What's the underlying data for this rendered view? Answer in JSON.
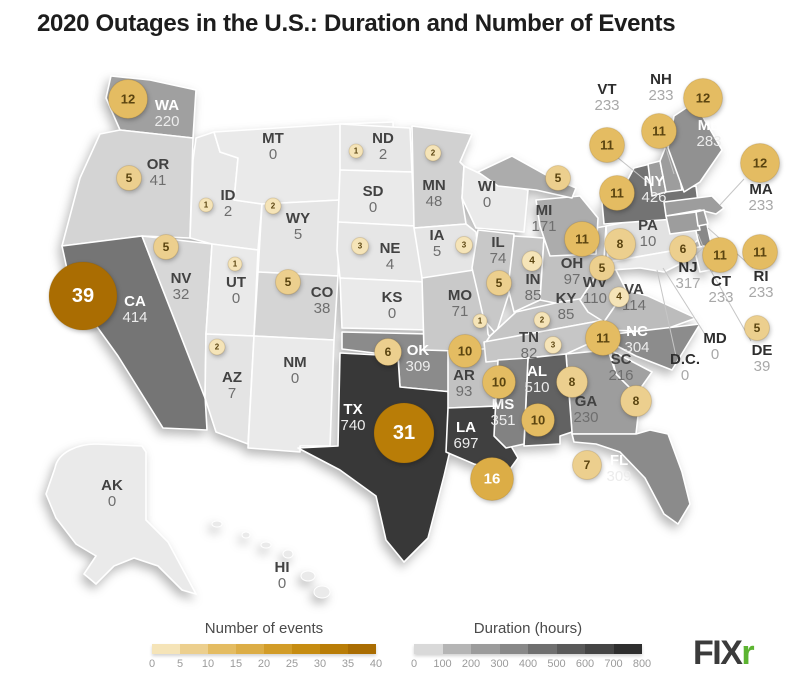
{
  "title": "2020 Outages in the U.S.: Duration and Number of Events",
  "legends": {
    "events": {
      "title": "Number of events",
      "ticks": [
        "0",
        "5",
        "10",
        "15",
        "20",
        "25",
        "30",
        "35",
        "40"
      ],
      "colors": [
        "#f5e4b8",
        "#eccf8e",
        "#e4bc62",
        "#dcad46",
        "#d29c28",
        "#c68c11",
        "#b97d07",
        "#aa6d02"
      ]
    },
    "duration": {
      "title": "Duration (hours)",
      "ticks": [
        "0",
        "100",
        "200",
        "300",
        "400",
        "500",
        "600",
        "700",
        "800"
      ],
      "colors": [
        "#d9d9d9",
        "#b5b5b5",
        "#9c9c9c",
        "#888888",
        "#6f6f6f",
        "#595959",
        "#454545",
        "#2e2e2e"
      ]
    }
  },
  "logo": {
    "text_dark": "FIX",
    "text_green": "r",
    "dark_color": "#3b3b3b",
    "green_color": "#5cb431"
  },
  "chart_data": {
    "type": "heatmap",
    "subtype": "us-choropleth-with-bubble-overlay",
    "title": "2020 Outages in the U.S.: Duration and Number of Events",
    "color_metric": {
      "label": "Duration (hours)",
      "range": [
        0,
        800
      ]
    },
    "size_metric": {
      "label": "Number of events",
      "range": [
        0,
        40
      ]
    },
    "states": [
      {
        "state": "WA",
        "duration_hours": 220,
        "events": 12
      },
      {
        "state": "OR",
        "duration_hours": 41,
        "events": 5
      },
      {
        "state": "CA",
        "duration_hours": 414,
        "events": 39
      },
      {
        "state": "NV",
        "duration_hours": 32,
        "events": 5
      },
      {
        "state": "ID",
        "duration_hours": 2,
        "events": 1
      },
      {
        "state": "MT",
        "duration_hours": 0,
        "events": null
      },
      {
        "state": "WY",
        "duration_hours": 5,
        "events": 2
      },
      {
        "state": "UT",
        "duration_hours": 0,
        "events": 1
      },
      {
        "state": "CO",
        "duration_hours": 38,
        "events": 5
      },
      {
        "state": "AZ",
        "duration_hours": 7,
        "events": 2
      },
      {
        "state": "NM",
        "duration_hours": 0,
        "events": null
      },
      {
        "state": "ND",
        "duration_hours": 2,
        "events": 1
      },
      {
        "state": "SD",
        "duration_hours": 0,
        "events": null
      },
      {
        "state": "NE",
        "duration_hours": 4,
        "events": 3
      },
      {
        "state": "KS",
        "duration_hours": 0,
        "events": null
      },
      {
        "state": "OK",
        "duration_hours": 309,
        "events": 6
      },
      {
        "state": "TX",
        "duration_hours": 740,
        "events": 31
      },
      {
        "state": "MN",
        "duration_hours": 48,
        "events": 2
      },
      {
        "state": "WI",
        "duration_hours": 0,
        "events": null
      },
      {
        "state": "IA",
        "duration_hours": 5,
        "events": 3
      },
      {
        "state": "MO",
        "duration_hours": 71,
        "events": 1
      },
      {
        "state": "AR",
        "duration_hours": 93,
        "events": 10
      },
      {
        "state": "LA",
        "duration_hours": 697,
        "events": 16
      },
      {
        "state": "IL",
        "duration_hours": 74,
        "events": 5
      },
      {
        "state": "IN",
        "duration_hours": 85,
        "events": 4
      },
      {
        "state": "OH",
        "duration_hours": 97,
        "events": 11
      },
      {
        "state": "MI",
        "duration_hours": 171,
        "events": 5
      },
      {
        "state": "KY",
        "duration_hours": 85,
        "events": 2
      },
      {
        "state": "TN",
        "duration_hours": 82,
        "events": 3
      },
      {
        "state": "WV",
        "duration_hours": 110,
        "events": 5
      },
      {
        "state": "VA",
        "duration_hours": 114,
        "events": 4
      },
      {
        "state": "NC",
        "duration_hours": 304,
        "events": 11
      },
      {
        "state": "SC",
        "duration_hours": 216,
        "events": 8
      },
      {
        "state": "GA",
        "duration_hours": 230,
        "events": 8
      },
      {
        "state": "AL",
        "duration_hours": 510,
        "events": 10
      },
      {
        "state": "MS",
        "duration_hours": 351,
        "events": 10
      },
      {
        "state": "FL",
        "duration_hours": 309,
        "events": 7
      },
      {
        "state": "PA",
        "duration_hours": 10,
        "events": 8
      },
      {
        "state": "NY",
        "duration_hours": 426,
        "events": 11
      },
      {
        "state": "NJ",
        "duration_hours": 317,
        "events": 6
      },
      {
        "state": "MD",
        "duration_hours": 0,
        "events": null
      },
      {
        "state": "DE",
        "duration_hours": 39,
        "events": 5
      },
      {
        "state": "VT",
        "duration_hours": 233,
        "events": 11
      },
      {
        "state": "NH",
        "duration_hours": 233,
        "events": 11
      },
      {
        "state": "ME",
        "duration_hours": 283,
        "events": 12
      },
      {
        "state": "MA",
        "duration_hours": 233,
        "events": 12
      },
      {
        "state": "CT",
        "duration_hours": 233,
        "events": 11
      },
      {
        "state": "RI",
        "duration_hours": 233,
        "events": 11
      },
      {
        "state": "D.C.",
        "duration_hours": 0,
        "events": null
      },
      {
        "state": "AK",
        "duration_hours": 0,
        "events": null
      },
      {
        "state": "HI",
        "duration_hours": 0,
        "events": null
      }
    ]
  }
}
